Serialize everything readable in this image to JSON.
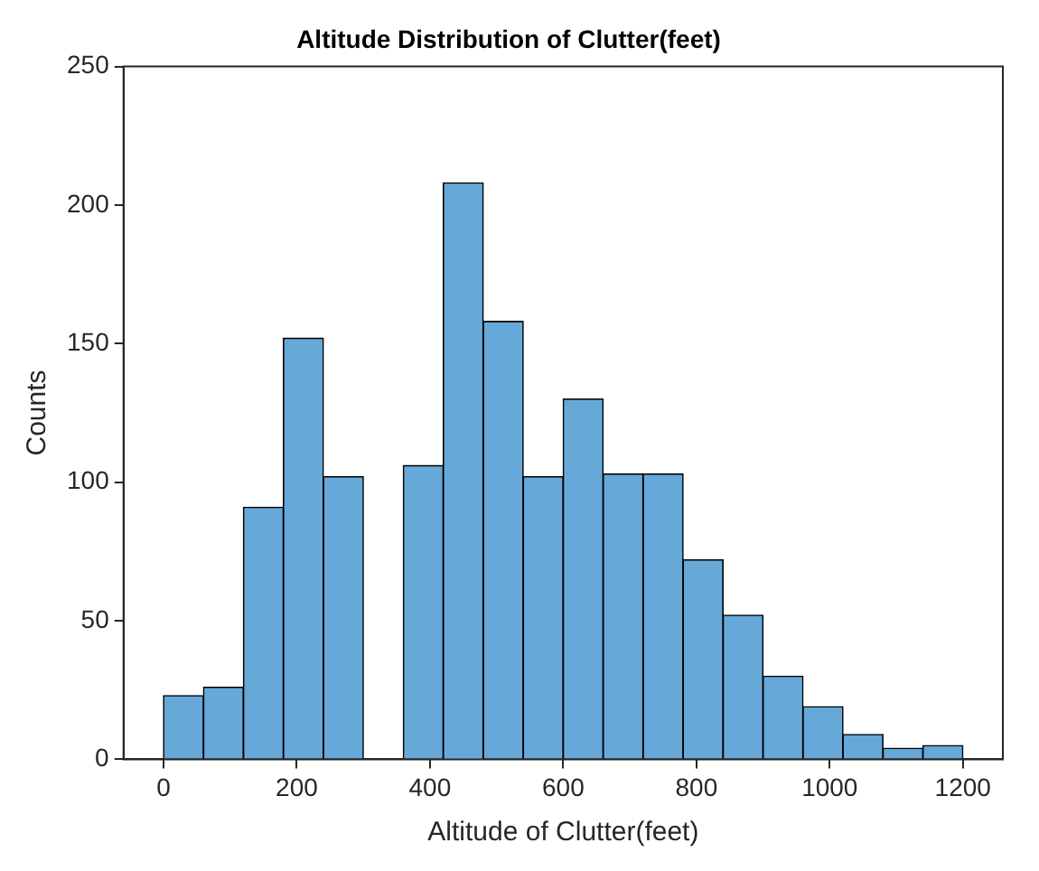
{
  "chart_data": {
    "type": "histogram",
    "title": "Altitude Distribution of Clutter(feet)",
    "xlabel": "Altitude of Clutter(feet)",
    "ylabel": "Counts",
    "bins": [
      0,
      60,
      120,
      180,
      240,
      300,
      360,
      420,
      480,
      540,
      600,
      660,
      720,
      780,
      840,
      900,
      960,
      1020,
      1080,
      1140,
      1200
    ],
    "values": [
      23,
      26,
      91,
      152,
      102,
      0,
      106,
      208,
      158,
      102,
      130,
      103,
      103,
      72,
      52,
      30,
      19,
      9,
      4,
      5
    ],
    "color": "#66a9d9",
    "xlim": [
      -60,
      1260
    ],
    "xticks": [
      0,
      200,
      400,
      600,
      800,
      1000,
      1200
    ],
    "ylim": [
      0,
      250
    ],
    "yticks": [
      0,
      50,
      100,
      150,
      200,
      250
    ],
    "grid": false,
    "legend": false
  }
}
